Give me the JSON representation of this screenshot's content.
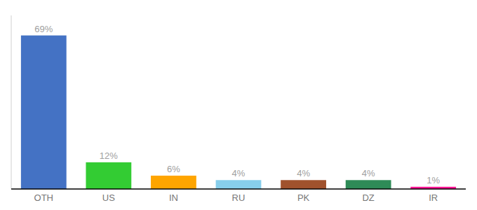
{
  "chart_data": {
    "type": "bar",
    "categories": [
      "OTH",
      "US",
      "IN",
      "RU",
      "PK",
      "DZ",
      "IR"
    ],
    "values": [
      69,
      12,
      6,
      4,
      4,
      4,
      1
    ],
    "value_labels": [
      "69%",
      "12%",
      "6%",
      "4%",
      "4%",
      "4%",
      "1%"
    ],
    "colors": [
      "#4472C4",
      "#33CC33",
      "#FFA500",
      "#87CEEB",
      "#A0522D",
      "#2E8B57",
      "#FF1493"
    ],
    "ylim": [
      0,
      78
    ],
    "data_labels": true,
    "tick_labels": "x",
    "grid": false
  }
}
